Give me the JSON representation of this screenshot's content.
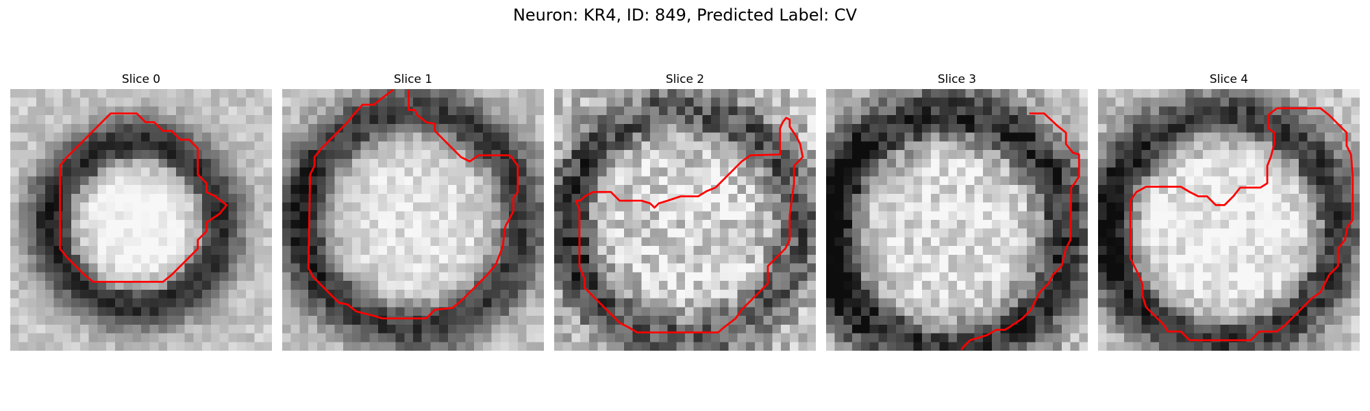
{
  "figure": {
    "title": "Neuron: KR4, ID: 849, Predicted Label: CV"
  },
  "panels": [
    {
      "title": "Slice 0",
      "grid_size": 30,
      "seed": 11,
      "features": {
        "ring_center": [
          14.5,
          15.5
        ],
        "ring_radius": 9.5,
        "ring_width": 3.0,
        "ring_darkness": 0.6,
        "inner_brightness": 0.2,
        "dark_left": 0.35,
        "noise": 0.1
      },
      "contour": [
        [
          12.5,
          2.8
        ],
        [
          14.5,
          2.8
        ],
        [
          15.5,
          3.8
        ],
        [
          16.5,
          3.8
        ],
        [
          17.5,
          4.8
        ],
        [
          18.5,
          4.8
        ],
        [
          19.5,
          5.8
        ],
        [
          20.5,
          5.8
        ],
        [
          21.5,
          6.8
        ],
        [
          21.5,
          7.8
        ],
        [
          21.5,
          8.8
        ],
        [
          21.5,
          9.8
        ],
        [
          22.5,
          10.8
        ],
        [
          22.5,
          11.8
        ],
        [
          23.5,
          12.3
        ],
        [
          24.8,
          13.3
        ],
        [
          24.0,
          14.3
        ],
        [
          22.5,
          15.3
        ],
        [
          22.5,
          16.3
        ],
        [
          21.5,
          17.3
        ],
        [
          21.5,
          18.3
        ],
        [
          20.5,
          19.3
        ],
        [
          19.5,
          20.3
        ],
        [
          18.5,
          21.3
        ],
        [
          17.5,
          22.1
        ],
        [
          9.5,
          22.1
        ],
        [
          8.5,
          21.3
        ],
        [
          7.5,
          20.3
        ],
        [
          6.5,
          19.3
        ],
        [
          5.7,
          18.3
        ],
        [
          5.7,
          8.8
        ],
        [
          6.5,
          7.8
        ],
        [
          7.5,
          6.8
        ],
        [
          8.5,
          5.8
        ],
        [
          9.5,
          4.8
        ],
        [
          10.5,
          3.8
        ],
        [
          11.5,
          2.8
        ],
        [
          12.5,
          2.8
        ]
      ]
    },
    {
      "title": "Slice 1",
      "grid_size": 30,
      "seed": 23,
      "features": {
        "ring_center": [
          15.0,
          15.0
        ],
        "ring_radius": 12.5,
        "ring_width": 3.2,
        "ring_darkness": 0.55,
        "inner_brightness": 0.1,
        "dark_left": 0.2,
        "noise": 0.12
      },
      "contour": [
        [
          12.7,
          0.1
        ],
        [
          11.5,
          1.0
        ],
        [
          10.5,
          1.8
        ],
        [
          9.2,
          1.8
        ],
        [
          8.3,
          2.8
        ],
        [
          7.5,
          3.8
        ],
        [
          6.5,
          4.8
        ],
        [
          5.5,
          5.8
        ],
        [
          4.5,
          6.8
        ],
        [
          3.7,
          7.8
        ],
        [
          3.7,
          8.8
        ],
        [
          3.2,
          9.8
        ],
        [
          3.0,
          20.5
        ],
        [
          3.5,
          21.5
        ],
        [
          4.0,
          22.0
        ],
        [
          4.5,
          22.5
        ],
        [
          5.5,
          23.5
        ],
        [
          6.5,
          24.5
        ],
        [
          7.5,
          24.7
        ],
        [
          8.5,
          25.5
        ],
        [
          10.5,
          26.0
        ],
        [
          11.5,
          26.3
        ],
        [
          16.5,
          26.3
        ],
        [
          17.5,
          25.3
        ],
        [
          19.5,
          25.1
        ],
        [
          20.5,
          24.3
        ],
        [
          21.5,
          23.3
        ],
        [
          22.5,
          22.3
        ],
        [
          23.5,
          21.3
        ],
        [
          24.5,
          20.1
        ],
        [
          25.0,
          18.8
        ],
        [
          25.3,
          18.0
        ],
        [
          25.5,
          16.0
        ],
        [
          25.7,
          15.5
        ],
        [
          26.0,
          15.0
        ],
        [
          26.5,
          14.0
        ],
        [
          26.5,
          12.5
        ],
        [
          27.0,
          11.8
        ],
        [
          27.0,
          8.8
        ],
        [
          26.3,
          7.8
        ],
        [
          26.0,
          7.6
        ],
        [
          22.5,
          7.6
        ],
        [
          21.5,
          8.3
        ],
        [
          20.5,
          7.8
        ],
        [
          19.5,
          6.8
        ],
        [
          18.5,
          5.8
        ],
        [
          17.5,
          4.8
        ],
        [
          17.5,
          4.0
        ],
        [
          16.5,
          3.8
        ],
        [
          15.5,
          3.0
        ],
        [
          15.2,
          2.4
        ],
        [
          14.5,
          2.4
        ],
        [
          14.5,
          0.1
        ]
      ]
    },
    {
      "title": "Slice 2",
      "grid_size": 30,
      "seed": 37,
      "features": {
        "ring_center": [
          15.0,
          15.5
        ],
        "ring_radius": 13.0,
        "ring_width": 3.0,
        "ring_darkness": 0.45,
        "inner_brightness": 0.05,
        "dark_left": 0.25,
        "noise": 0.22
      },
      "contour": [
        [
          26.2,
          3.8
        ],
        [
          25.9,
          4.5
        ],
        [
          25.9,
          7.5
        ],
        [
          22.5,
          7.6
        ],
        [
          21.5,
          8.3
        ],
        [
          20.5,
          9.3
        ],
        [
          19.5,
          10.3
        ],
        [
          18.5,
          11.3
        ],
        [
          17.5,
          11.7
        ],
        [
          16.5,
          12.3
        ],
        [
          14.5,
          12.3
        ],
        [
          13.0,
          12.8
        ],
        [
          12.0,
          13.1
        ],
        [
          11.5,
          13.6
        ],
        [
          11.0,
          13.1
        ],
        [
          10.0,
          12.8
        ],
        [
          7.5,
          12.8
        ],
        [
          6.5,
          11.8
        ],
        [
          4.5,
          11.8
        ],
        [
          3.5,
          12.3
        ],
        [
          3.0,
          12.8
        ],
        [
          2.5,
          12.8
        ],
        [
          2.9,
          13.8
        ],
        [
          2.9,
          20.4
        ],
        [
          3.5,
          21.8
        ],
        [
          3.5,
          22.8
        ],
        [
          4.5,
          23.8
        ],
        [
          5.5,
          24.8
        ],
        [
          6.5,
          25.8
        ],
        [
          7.5,
          26.8
        ],
        [
          8.5,
          27.3
        ],
        [
          9.5,
          27.9
        ],
        [
          18.8,
          27.9
        ],
        [
          19.5,
          27.3
        ],
        [
          20.8,
          26.3
        ],
        [
          21.5,
          25.3
        ],
        [
          22.5,
          24.3
        ],
        [
          23.5,
          23.3
        ],
        [
          24.5,
          22.3
        ],
        [
          24.5,
          20.3
        ],
        [
          25.5,
          19.3
        ],
        [
          26.5,
          18.3
        ],
        [
          27.0,
          17.3
        ],
        [
          27.0,
          14.5
        ],
        [
          27.5,
          10.8
        ],
        [
          27.5,
          8.8
        ],
        [
          28.5,
          7.8
        ],
        [
          28.2,
          6.3
        ],
        [
          27.8,
          5.5
        ],
        [
          27.0,
          4.3
        ],
        [
          27.0,
          3.5
        ],
        [
          26.6,
          3.3
        ],
        [
          26.2,
          3.8
        ]
      ]
    },
    {
      "title": "Slice 3",
      "grid_size": 30,
      "seed": 53,
      "features": {
        "ring_center": [
          14.0,
          16.5
        ],
        "ring_radius": 13.5,
        "ring_width": 3.5,
        "ring_darkness": 0.6,
        "inner_brightness": 0.1,
        "dark_left": 0.3,
        "noise": 0.18
      },
      "contour": [
        [
          23.3,
          2.8
        ],
        [
          25.0,
          2.8
        ],
        [
          26.5,
          4.2
        ],
        [
          27.5,
          5.0
        ],
        [
          27.5,
          6.3
        ],
        [
          28.3,
          7.3
        ],
        [
          29.0,
          7.5
        ],
        [
          29.0,
          10.0
        ],
        [
          28.5,
          10.8
        ],
        [
          28.1,
          11.3
        ],
        [
          28.0,
          17.3
        ],
        [
          27.5,
          18.3
        ],
        [
          27.0,
          20.3
        ],
        [
          26.0,
          21.3
        ],
        [
          25.5,
          22.3
        ],
        [
          24.5,
          23.3
        ],
        [
          24.0,
          24.3
        ],
        [
          23.5,
          25.3
        ],
        [
          22.5,
          26.3
        ],
        [
          21.0,
          27.3
        ],
        [
          20.5,
          27.6
        ],
        [
          19.5,
          27.6
        ],
        [
          18.5,
          28.2
        ],
        [
          16.5,
          28.8
        ],
        [
          15.8,
          29.5
        ],
        [
          15.5,
          29.9
        ]
      ]
    },
    {
      "title": "Slice 4",
      "grid_size": 30,
      "seed": 71,
      "features": {
        "ring_center": [
          14.5,
          16.0
        ],
        "ring_radius": 13.0,
        "ring_width": 3.3,
        "ring_darkness": 0.55,
        "inner_brightness": 0.15,
        "dark_left": 0.25,
        "noise": 0.15
      },
      "contour": [
        [
          20.5,
          2.2
        ],
        [
          25.5,
          2.2
        ],
        [
          26.5,
          3.0
        ],
        [
          27.5,
          4.0
        ],
        [
          28.5,
          5.0
        ],
        [
          28.5,
          6.5
        ],
        [
          29.0,
          7.5
        ],
        [
          29.2,
          10.0
        ],
        [
          29.2,
          15.0
        ],
        [
          28.6,
          15.8
        ],
        [
          28.3,
          17.3
        ],
        [
          27.5,
          18.3
        ],
        [
          27.5,
          20.3
        ],
        [
          26.5,
          21.3
        ],
        [
          26.0,
          22.3
        ],
        [
          25.5,
          23.3
        ],
        [
          24.5,
          24.0
        ],
        [
          23.5,
          25.0
        ],
        [
          22.5,
          26.0
        ],
        [
          21.5,
          27.0
        ],
        [
          20.5,
          27.8
        ],
        [
          18.5,
          27.8
        ],
        [
          17.5,
          28.8
        ],
        [
          10.5,
          28.8
        ],
        [
          9.5,
          27.8
        ],
        [
          8.0,
          27.8
        ],
        [
          7.5,
          27.0
        ],
        [
          6.5,
          26.0
        ],
        [
          5.5,
          25.0
        ],
        [
          5.1,
          23.7
        ],
        [
          5.1,
          22.4
        ],
        [
          4.7,
          21.4
        ],
        [
          4.2,
          20.4
        ],
        [
          3.7,
          19.4
        ],
        [
          3.7,
          12.8
        ],
        [
          4.4,
          11.8
        ],
        [
          5.5,
          11.2
        ],
        [
          9.5,
          11.2
        ],
        [
          10.5,
          11.8
        ],
        [
          11.5,
          12.3
        ],
        [
          12.5,
          12.3
        ],
        [
          13.5,
          13.3
        ],
        [
          14.5,
          13.3
        ],
        [
          15.5,
          12.3
        ],
        [
          16.3,
          11.3
        ],
        [
          18.6,
          11.3
        ],
        [
          19.4,
          10.8
        ],
        [
          19.4,
          8.8
        ],
        [
          19.8,
          7.8
        ],
        [
          20.2,
          6.3
        ],
        [
          20.2,
          5.0
        ],
        [
          19.5,
          4.5
        ],
        [
          19.5,
          3.0
        ],
        [
          20.5,
          2.2
        ]
      ]
    }
  ]
}
